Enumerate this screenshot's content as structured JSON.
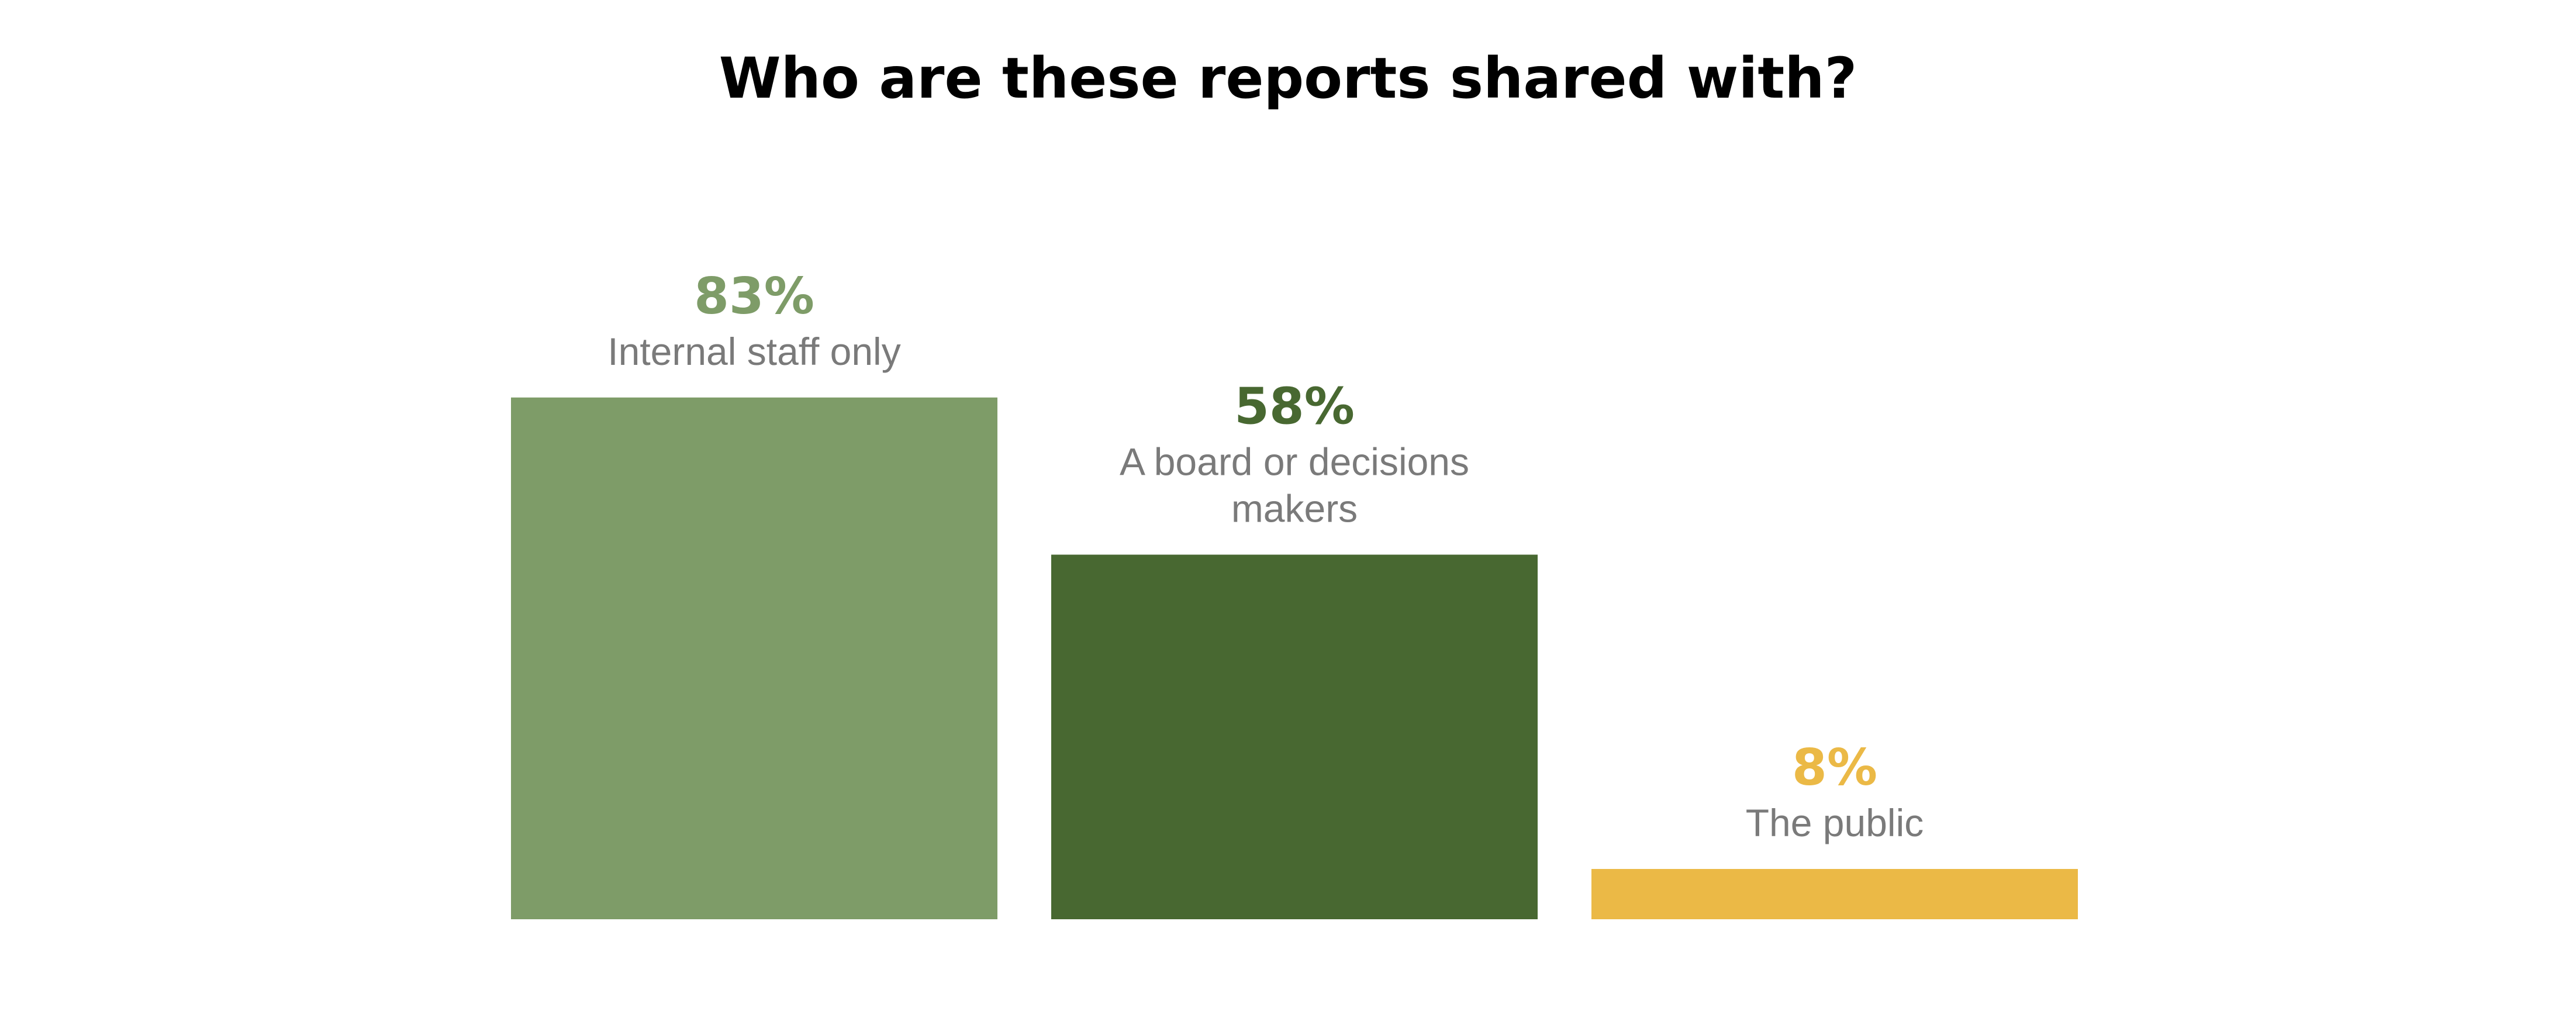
{
  "chart_data": {
    "type": "bar",
    "title": "Who are these reports shared with?",
    "categories": [
      "Internal staff only",
      "A board or decisions makers",
      "The public"
    ],
    "category_label_lines": [
      [
        "Internal staff only"
      ],
      [
        "A board or decisions",
        "makers"
      ],
      [
        "The public"
      ]
    ],
    "values": [
      83,
      58,
      8
    ],
    "value_labels": [
      "83%",
      "58%",
      "8%"
    ],
    "colors": [
      "#7e9c68",
      "#486831",
      "#ebb946"
    ],
    "ylim": [
      0,
      100
    ],
    "grid": false,
    "legend": "none",
    "xlabel": "",
    "ylabel": ""
  }
}
